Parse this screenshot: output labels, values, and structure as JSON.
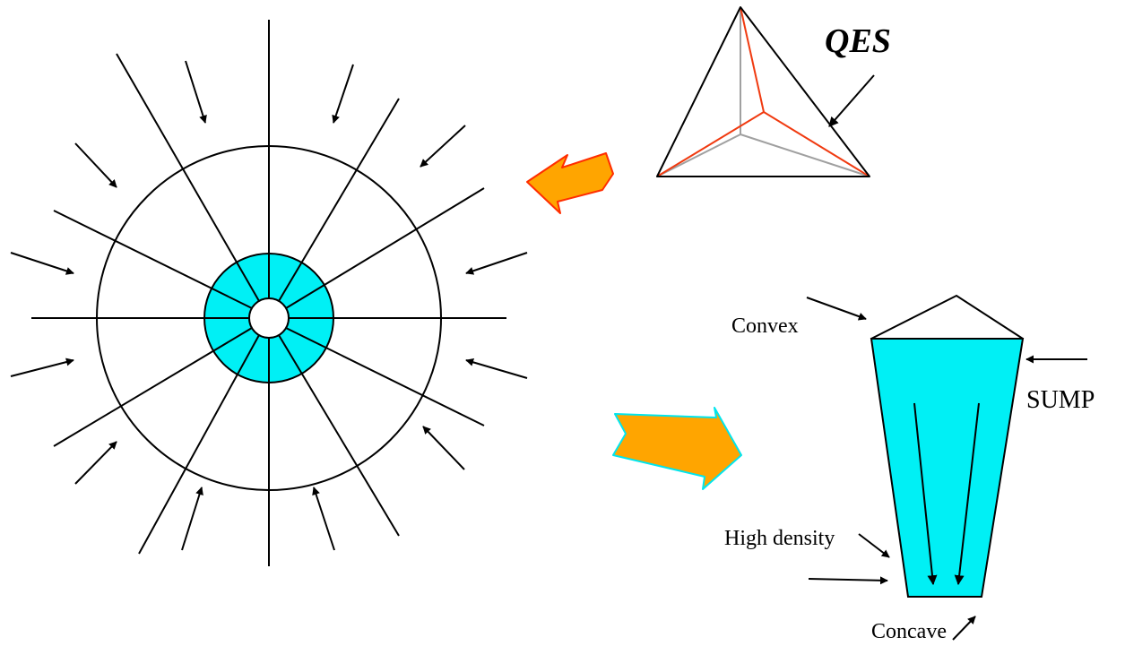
{
  "labels": {
    "qes": "QES",
    "convex": "Convex",
    "sump": "SUMP",
    "high_density": "High density",
    "concave": "Concave"
  },
  "colors": {
    "fill": "#00f0f5",
    "arrow_fill": "#ffa500",
    "arrow_outline_left": "#ff2d00",
    "arrow_outline_right": "#00e5ee",
    "tetra_red": "#f03a10",
    "tetra_gray": "#a0a0a0"
  }
}
